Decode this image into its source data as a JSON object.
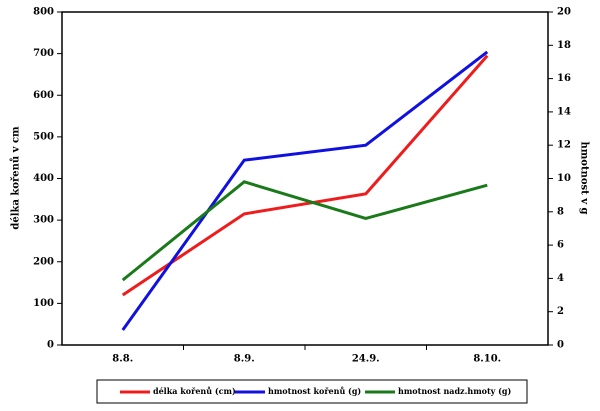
{
  "chart_data": {
    "type": "line",
    "y_label": "délka kořenů v cm",
    "y2_label": "hmotnost v g",
    "categories": [
      "8.8.",
      "8.9.",
      "24.9.",
      "8.10."
    ],
    "ylim": [
      0,
      800
    ],
    "yticks": [
      0,
      100,
      200,
      300,
      400,
      500,
      600,
      700,
      800
    ],
    "y2lim": [
      0,
      20
    ],
    "y2ticks": [
      0,
      2,
      4,
      6,
      8,
      10,
      12,
      14,
      16,
      18,
      20
    ],
    "series": [
      {
        "name": "délka kořenů (cm)",
        "color": "#ee1c1c",
        "values": [
          120,
          315,
          363,
          695
        ]
      },
      {
        "name": "hmotnost kořenů (g)",
        "color": "#1010e0",
        "axis": "y2",
        "values": [
          0.9,
          11.1,
          12.0,
          17.6
        ]
      },
      {
        "name": "hmotnost nadz.hmoty (g)",
        "color": "#1a7a1a",
        "axis": "y2",
        "values": [
          3.9,
          9.8,
          7.6,
          9.6
        ]
      }
    ],
    "legend": "bottom"
  }
}
